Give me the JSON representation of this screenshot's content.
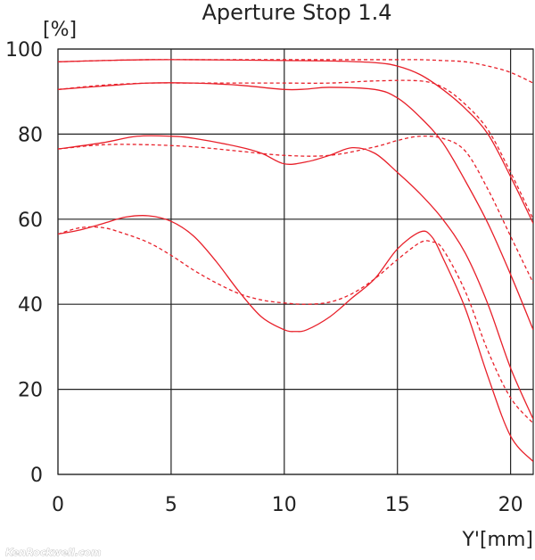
{
  "chart_data": {
    "type": "line",
    "title": "Aperture Stop 1.4",
    "xlabel": "Y'[mm]",
    "ylabel": "[%]",
    "xlim": [
      0,
      21
    ],
    "ylim": [
      0,
      100
    ],
    "xticks": [
      0,
      5,
      10,
      15,
      20
    ],
    "yticks": [
      0,
      20,
      40,
      60,
      80,
      100
    ],
    "grid": true,
    "line_color": "#e8202a",
    "series": [
      {
        "style": "solid",
        "x": [
          0,
          2,
          4,
          6,
          8,
          10,
          12,
          14,
          15,
          16,
          17,
          18,
          19,
          20,
          21
        ],
        "y": [
          97,
          97.3,
          97.5,
          97.5,
          97.4,
          97.3,
          97.2,
          96.8,
          96,
          94,
          90.5,
          86,
          80,
          70,
          59
        ]
      },
      {
        "style": "dashed",
        "x": [
          0,
          2,
          4,
          6,
          8,
          10,
          12,
          14,
          15,
          16,
          17,
          18,
          19,
          20,
          21
        ],
        "y": [
          97,
          97.3,
          97.5,
          97.5,
          97.5,
          97.5,
          97.5,
          97.5,
          97.5,
          97.5,
          97.3,
          97,
          96,
          94.5,
          92
        ]
      },
      {
        "style": "solid",
        "x": [
          0,
          2,
          4,
          6,
          8,
          10,
          11,
          12,
          14,
          15,
          16,
          17,
          18,
          19,
          20,
          21
        ],
        "y": [
          90.5,
          91.3,
          92,
          92,
          91.5,
          90.5,
          90.6,
          91,
          90.5,
          88.5,
          84,
          78,
          69,
          59,
          47,
          34
        ]
      },
      {
        "style": "dashed",
        "x": [
          0,
          2,
          4,
          6,
          8,
          10,
          12,
          14,
          16,
          17,
          18,
          19,
          20,
          21
        ],
        "y": [
          90.5,
          91.5,
          92,
          92,
          92,
          92,
          92,
          92.5,
          92.5,
          91,
          87,
          81,
          71,
          60
        ]
      },
      {
        "style": "solid",
        "x": [
          0,
          2,
          3.5,
          5,
          6,
          8,
          9,
          10,
          11,
          12,
          13,
          14,
          15,
          16,
          17,
          18,
          19,
          20,
          21
        ],
        "y": [
          76.5,
          78,
          79.5,
          79.5,
          79,
          77,
          75.5,
          73,
          73.5,
          75,
          76.8,
          75.5,
          71,
          66,
          60,
          52,
          40,
          25,
          13
        ]
      },
      {
        "style": "dashed",
        "x": [
          0,
          2,
          4,
          6,
          8,
          10,
          12,
          14,
          15,
          16,
          17,
          18,
          19,
          20,
          21
        ],
        "y": [
          76.5,
          77.5,
          77.5,
          77,
          76,
          75,
          75,
          77,
          78.5,
          79.5,
          79,
          76,
          67,
          56,
          45
        ]
      },
      {
        "style": "solid",
        "x": [
          0,
          1,
          2,
          3,
          4,
          5,
          6,
          7,
          8,
          9,
          10,
          10.5,
          11,
          12,
          13,
          14,
          15,
          16,
          16.5,
          17,
          18,
          19,
          20,
          21
        ],
        "y": [
          56.5,
          57.5,
          59,
          60.5,
          60.8,
          59.5,
          56,
          50,
          43,
          37,
          34,
          33.6,
          34,
          37,
          41.5,
          46,
          53,
          57,
          56,
          51,
          39,
          23,
          9,
          3
        ]
      },
      {
        "style": "dashed",
        "x": [
          0,
          1,
          2,
          3,
          4,
          5,
          6,
          7,
          8,
          9,
          10,
          11,
          12,
          13,
          14,
          15,
          16,
          16.5,
          17,
          18,
          19,
          20,
          21
        ],
        "y": [
          56.5,
          58,
          58,
          56.5,
          54.5,
          51.5,
          48,
          45,
          42.5,
          41,
          40.3,
          40,
          40.5,
          42.5,
          46,
          50.5,
          54.5,
          54.7,
          53,
          43,
          29,
          18,
          12
        ]
      }
    ],
    "annotations": [
      "KenRockwell.com"
    ]
  }
}
